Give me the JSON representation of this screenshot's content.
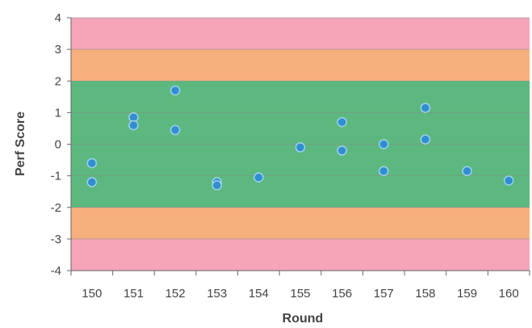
{
  "chart_data": {
    "type": "scatter",
    "title": "",
    "xlabel": "Round",
    "ylabel": "Perf Score",
    "x_ticks": [
      "150",
      "151",
      "152",
      "153",
      "154",
      "155",
      "156",
      "157",
      "158",
      "159",
      "160"
    ],
    "y_ticks": [
      "4",
      "3",
      "2",
      "1",
      "0",
      "-1",
      "-2",
      "-3",
      "-4"
    ],
    "xlim": [
      149.5,
      160.5
    ],
    "ylim": [
      -4,
      4
    ],
    "grid": "horizontal",
    "legend": "none",
    "bands": [
      {
        "from": 3,
        "to": 4,
        "color": "#f4a6b8"
      },
      {
        "from": 2,
        "to": 3,
        "color": "#f6b07d"
      },
      {
        "from": -2,
        "to": 2,
        "color": "#5cb87e"
      },
      {
        "from": -3,
        "to": -2,
        "color": "#f6b07d"
      },
      {
        "from": -4,
        "to": -3,
        "color": "#f4a6b8"
      }
    ],
    "point_color": "#2f8fd0",
    "points": [
      {
        "x": 150,
        "y": -0.6
      },
      {
        "x": 150,
        "y": -1.2
      },
      {
        "x": 151,
        "y": 0.85
      },
      {
        "x": 151,
        "y": 0.6
      },
      {
        "x": 152,
        "y": 1.7
      },
      {
        "x": 152,
        "y": 0.45
      },
      {
        "x": 153,
        "y": -1.2
      },
      {
        "x": 153,
        "y": -1.3
      },
      {
        "x": 154,
        "y": -1.05
      },
      {
        "x": 155,
        "y": -0.1
      },
      {
        "x": 156,
        "y": 0.7
      },
      {
        "x": 156,
        "y": -0.2
      },
      {
        "x": 157,
        "y": 0.0
      },
      {
        "x": 157,
        "y": -0.85
      },
      {
        "x": 158,
        "y": 1.15
      },
      {
        "x": 158,
        "y": 0.15
      },
      {
        "x": 159,
        "y": -0.85
      },
      {
        "x": 160,
        "y": -1.15
      }
    ]
  }
}
